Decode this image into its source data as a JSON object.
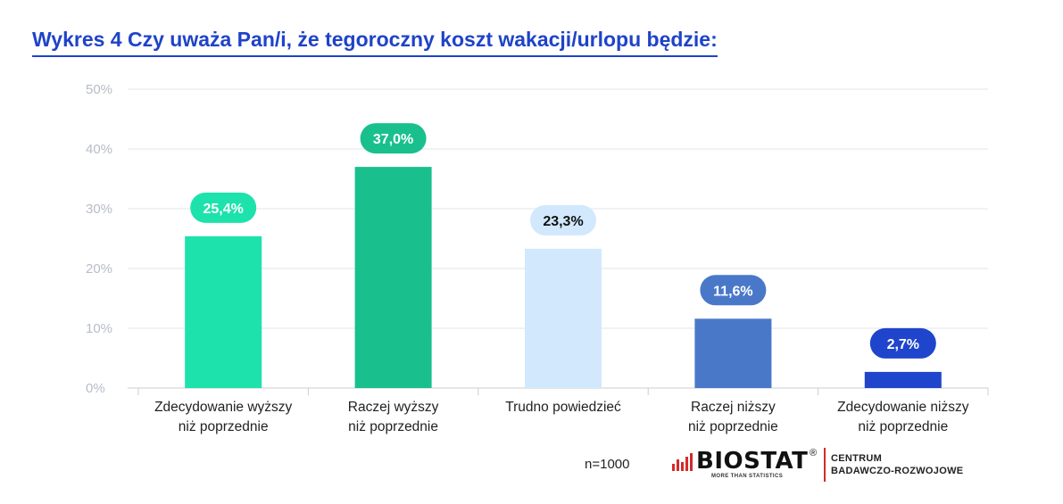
{
  "title": "Wykres 4 Czy uważa Pan/i, że tegoroczny koszt wakacji/urlopu będzie:",
  "note": "n=1000",
  "logo": {
    "name": "BIOSTAT",
    "registered": "®",
    "tagline": "MORE THAN STATISTICS",
    "unit_line1": "CENTRUM",
    "unit_line2": "BADAWCZO-ROZWOJOWE",
    "accent_color": "#d42a2a"
  },
  "chart_data": {
    "type": "bar",
    "categories": [
      [
        "Zdecydowanie wyższy",
        "niż poprzednie"
      ],
      [
        "Raczej wyższy",
        "niż poprzednie"
      ],
      [
        "Trudno powiedzieć"
      ],
      [
        "Raczej niższy",
        "niż poprzednie"
      ],
      [
        "Zdecydowanie niższy",
        "niż poprzednie"
      ]
    ],
    "values": [
      25.4,
      37.0,
      23.3,
      11.6,
      2.7
    ],
    "value_labels": [
      "25,4%",
      "37,0%",
      "23,3%",
      "11,6%",
      "2,7%"
    ],
    "colors": [
      "#1de2ac",
      "#19c08d",
      "#d2e8fd",
      "#4a78c9",
      "#1f45cc"
    ],
    "label_text_colors": [
      "#ffffff",
      "#ffffff",
      "#111111",
      "#ffffff",
      "#ffffff"
    ],
    "yticks": [
      "0%",
      "10%",
      "20%",
      "30%",
      "40%",
      "50%"
    ],
    "ylim": [
      0,
      50
    ],
    "grid": true,
    "title": "",
    "xlabel": "",
    "ylabel": ""
  }
}
